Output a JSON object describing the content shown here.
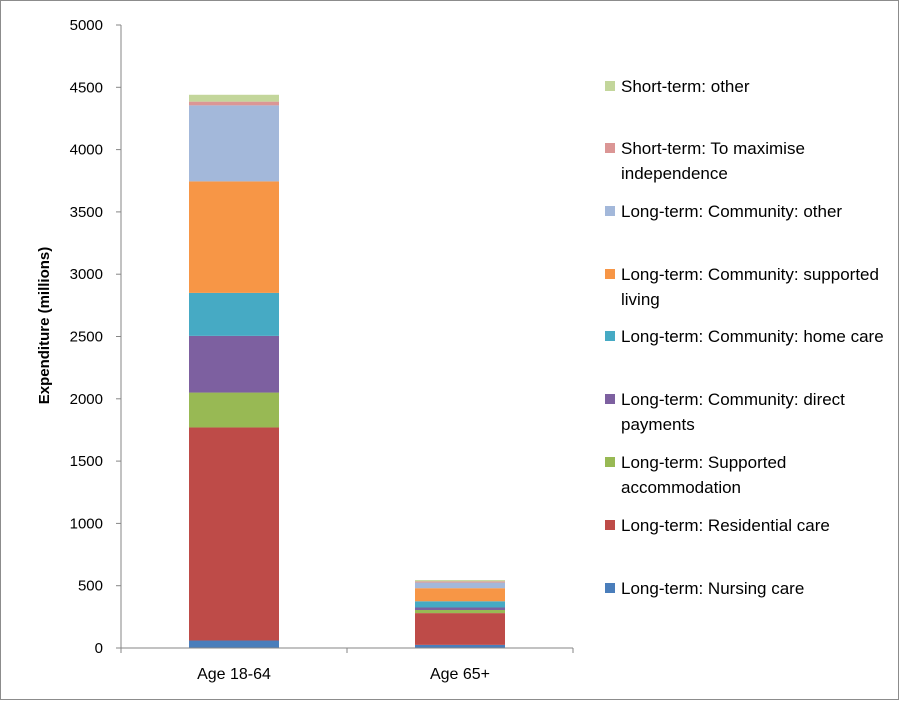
{
  "chart_data": {
    "type": "bar",
    "stacked": true,
    "title": "",
    "xlabel": "",
    "ylabel": "Expenditure (millions)",
    "ylim": [
      0,
      5000
    ],
    "yticks": [
      0,
      500,
      1000,
      1500,
      2000,
      2500,
      3000,
      3500,
      4000,
      4500,
      5000
    ],
    "grid": {
      "y_major": false,
      "x_major": false
    },
    "legend_position": "right",
    "categories": [
      "Age 18-64",
      "Age 65+"
    ],
    "series": [
      {
        "name": "Long-term: Nursing care",
        "color": "#4a7ebb",
        "values": [
          60,
          25
        ]
      },
      {
        "name": "Long-term: Residential care",
        "color": "#be4b48",
        "values": [
          1710,
          255
        ]
      },
      {
        "name": "Long-term: Supported accommodation",
        "color": "#98b954",
        "values": [
          280,
          25
        ]
      },
      {
        "name": "Long-term: Community: direct payments",
        "color": "#7d60a0",
        "values": [
          455,
          20
        ]
      },
      {
        "name": "Long-term: Community: home care",
        "color": "#46aac4",
        "values": [
          345,
          50
        ]
      },
      {
        "name": "Long-term: Community: supported living",
        "color": "#f79646",
        "values": [
          895,
          105
        ]
      },
      {
        "name": "Long-term: Community: other",
        "color": "#a3b8da",
        "values": [
          610,
          45
        ]
      },
      {
        "name": "Short-term: To maximise independence",
        "color": "#db9695",
        "values": [
          30,
          10
        ]
      },
      {
        "name": "Short-term: other",
        "color": "#c3d69b",
        "values": [
          55,
          10
        ]
      }
    ]
  }
}
